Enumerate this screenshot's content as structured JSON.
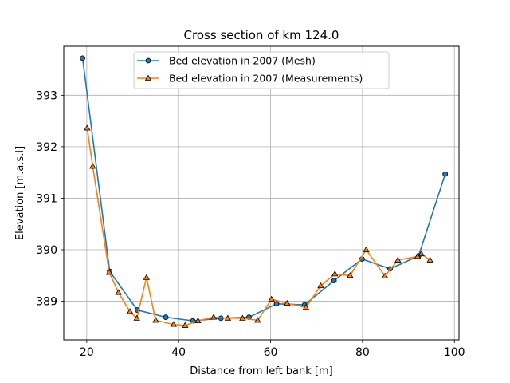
{
  "chart_data": {
    "type": "line",
    "title": "Cross section of km 124.0",
    "xlabel": "Distance from left bank [m]",
    "ylabel": "Elevation [m.a.s.l]",
    "xlim": [
      15,
      101
    ],
    "ylim": [
      388.25,
      393.95
    ],
    "xticks": [
      20,
      40,
      60,
      80,
      100
    ],
    "yticks": [
      389,
      390,
      391,
      392,
      393
    ],
    "grid": true,
    "legend_position": "upper-center",
    "series": [
      {
        "name": "Bed elevation in 2007 (Mesh)",
        "color": "#1f77b4",
        "marker": "circle",
        "x": [
          19.1,
          25.0,
          31.0,
          37.2,
          43.1,
          49.2,
          55.3,
          61.3,
          67.4,
          73.8,
          79.9,
          86.0,
          92.2,
          98.0
        ],
        "y": [
          393.72,
          389.58,
          388.83,
          388.69,
          388.62,
          388.67,
          388.69,
          388.95,
          388.93,
          389.4,
          389.82,
          389.63,
          389.88,
          391.47
        ]
      },
      {
        "name": "Bed elevation in 2007 (Measurements)",
        "color": "#ff7f0e",
        "marker": "triangle",
        "x": [
          20.1,
          21.3,
          24.9,
          26.9,
          29.4,
          30.9,
          33.0,
          35.0,
          38.9,
          41.4,
          44.2,
          47.6,
          50.7,
          53.9,
          57.2,
          60.2,
          63.6,
          67.7,
          70.9,
          74.0,
          77.3,
          80.8,
          84.9,
          87.7,
          92.0,
          92.8,
          94.7
        ],
        "y": [
          392.36,
          391.62,
          389.56,
          389.17,
          388.8,
          388.67,
          389.46,
          388.63,
          388.55,
          388.53,
          388.62,
          388.69,
          388.67,
          388.67,
          388.63,
          389.04,
          388.96,
          388.88,
          389.3,
          389.53,
          389.5,
          390.0,
          389.49,
          389.8,
          389.87,
          389.92,
          389.8
        ]
      }
    ]
  }
}
